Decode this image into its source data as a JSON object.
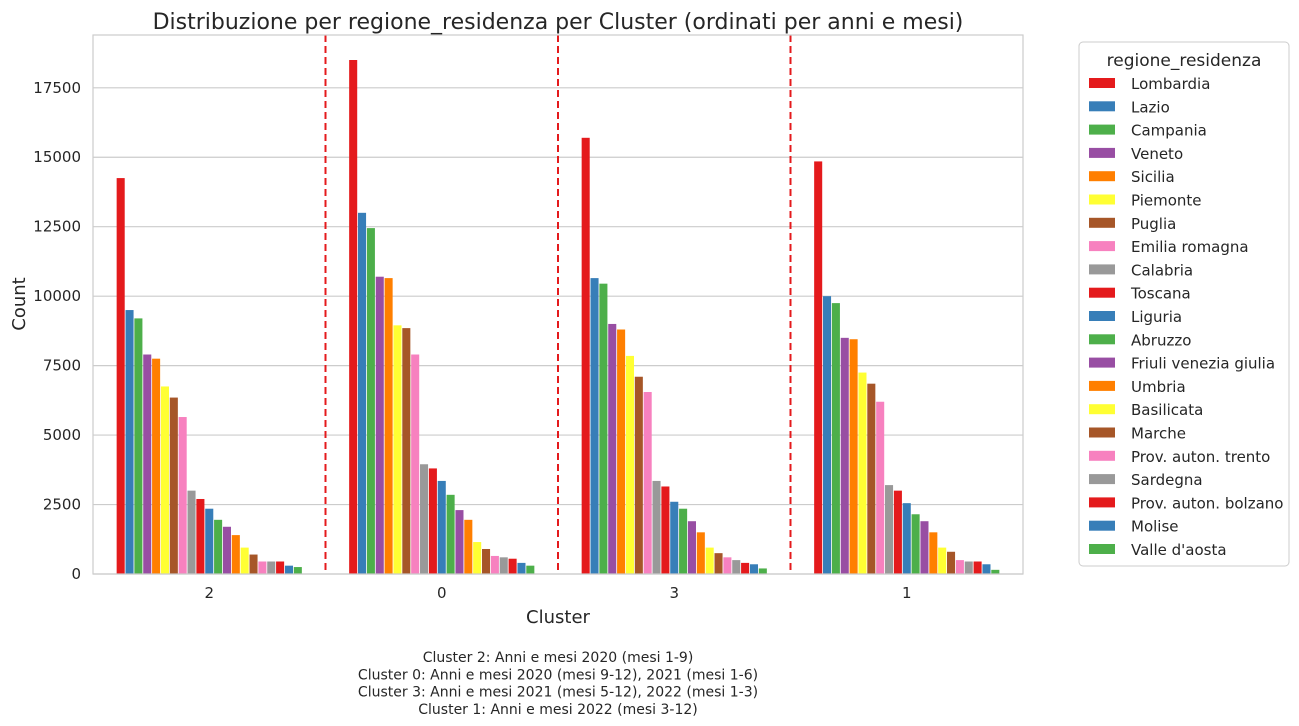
{
  "chart_data": {
    "type": "bar",
    "title": "Distribuzione per regione_residenza per Cluster (ordinati per anni e mesi)",
    "xlabel": "Cluster",
    "ylabel": "Count",
    "categories": [
      "2",
      "0",
      "3",
      "1"
    ],
    "ylim": [
      0,
      19400
    ],
    "yticks": [
      0,
      2500,
      5000,
      7500,
      10000,
      12500,
      15000,
      17500
    ],
    "grid": "horizontal",
    "separator_lines": {
      "color": "#e41a1c",
      "style": "dashed",
      "between_categories": true
    },
    "legend": {
      "title": "regione_residenza",
      "placement": "outside-right"
    },
    "series": [
      {
        "name": "Lombardia",
        "color": "#e41a1c",
        "values": [
          14250,
          18500,
          15700,
          14850
        ]
      },
      {
        "name": "Lazio",
        "color": "#377eb8",
        "values": [
          9500,
          13000,
          10650,
          10000
        ]
      },
      {
        "name": "Campania",
        "color": "#4daf4a",
        "values": [
          9200,
          12450,
          10450,
          9750
        ]
      },
      {
        "name": "Veneto",
        "color": "#984ea3",
        "values": [
          7900,
          10700,
          9000,
          8500
        ]
      },
      {
        "name": "Sicilia",
        "color": "#ff7f00",
        "values": [
          7750,
          10650,
          8800,
          8450
        ]
      },
      {
        "name": "Piemonte",
        "color": "#ffff33",
        "values": [
          6750,
          8950,
          7850,
          7250
        ]
      },
      {
        "name": "Puglia",
        "color": "#a65628",
        "values": [
          6350,
          8850,
          7100,
          6850
        ]
      },
      {
        "name": "Emilia romagna",
        "color": "#f781bf",
        "values": [
          5650,
          7900,
          6550,
          6200
        ]
      },
      {
        "name": "Calabria",
        "color": "#999999",
        "values": [
          3000,
          3950,
          3350,
          3200
        ]
      },
      {
        "name": "Toscana",
        "color": "#e41a1c",
        "values": [
          2700,
          3800,
          3150,
          3000
        ]
      },
      {
        "name": "Liguria",
        "color": "#377eb8",
        "values": [
          2350,
          3350,
          2600,
          2550
        ]
      },
      {
        "name": "Abruzzo",
        "color": "#4daf4a",
        "values": [
          1950,
          2850,
          2350,
          2150
        ]
      },
      {
        "name": "Friuli venezia giulia",
        "color": "#984ea3",
        "values": [
          1700,
          2300,
          1900,
          1900
        ]
      },
      {
        "name": "Umbria",
        "color": "#ff7f00",
        "values": [
          1400,
          1950,
          1500,
          1500
        ]
      },
      {
        "name": "Basilicata",
        "color": "#ffff33",
        "values": [
          950,
          1150,
          950,
          950
        ]
      },
      {
        "name": "Marche",
        "color": "#a65628",
        "values": [
          700,
          900,
          750,
          800
        ]
      },
      {
        "name": "Prov. auton. trento",
        "color": "#f781bf",
        "values": [
          450,
          650,
          600,
          500
        ]
      },
      {
        "name": "Sardegna",
        "color": "#999999",
        "values": [
          450,
          600,
          500,
          450
        ]
      },
      {
        "name": "Prov. auton. bolzano",
        "color": "#e41a1c",
        "values": [
          450,
          550,
          400,
          450
        ]
      },
      {
        "name": "Molise",
        "color": "#377eb8",
        "values": [
          300,
          400,
          350,
          350
        ]
      },
      {
        "name": "Valle d'aosta",
        "color": "#4daf4a",
        "values": [
          250,
          300,
          200,
          150
        ]
      }
    ],
    "annotations": [
      "Cluster 2: Anni e mesi 2020 (mesi 1-9)",
      "Cluster 0: Anni e mesi 2020 (mesi 9-12), 2021 (mesi 1-6)",
      "Cluster 3: Anni e mesi 2021 (mesi 5-12), 2022 (mesi 1-3)",
      "Cluster 1: Anni e mesi 2022 (mesi 3-12)"
    ]
  }
}
